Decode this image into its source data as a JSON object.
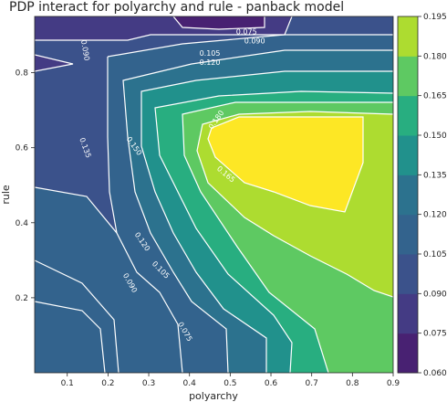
{
  "chart_data": {
    "type": "contour",
    "title": "PDP interact for polyarchy and rule - panback model",
    "xlabel": "polyarchy",
    "ylabel": "rule",
    "xlim": [
      0.02,
      0.9
    ],
    "ylim": [
      0.0,
      0.95
    ],
    "x_ticks": [
      "0.1",
      "0.2",
      "0.3",
      "0.4",
      "0.5",
      "0.6",
      "0.7",
      "0.8",
      "0.9"
    ],
    "y_ticks": [
      "0.2",
      "0.4",
      "0.6",
      "0.8"
    ],
    "colorbar": {
      "levels": [
        0.06,
        0.075,
        0.09,
        0.105,
        0.12,
        0.135,
        0.15,
        0.165,
        0.18,
        0.195
      ],
      "tick_labels": [
        "0.060",
        "0.075",
        "0.090",
        "0.105",
        "0.120",
        "0.135",
        "0.150",
        "0.165",
        "0.180",
        "0.195"
      ],
      "colors": [
        "#482172",
        "#443b84",
        "#3b528b",
        "#33638d",
        "#2c728e",
        "#21918c",
        "#28ae80",
        "#5ec962",
        "#addc30",
        "#fde725"
      ]
    },
    "contour_labels": [
      {
        "text": "0.075",
        "x": 0.54,
        "y": 0.91
      },
      {
        "text": "0.090",
        "x": 0.56,
        "y": 0.885
      },
      {
        "text": "0.090",
        "x": 0.145,
        "y": 0.86
      },
      {
        "text": "0.105",
        "x": 0.45,
        "y": 0.852
      },
      {
        "text": "0.120",
        "x": 0.45,
        "y": 0.828
      },
      {
        "text": "0.180",
        "x": 0.465,
        "y": 0.675
      },
      {
        "text": "0.135",
        "x": 0.145,
        "y": 0.6
      },
      {
        "text": "0.150",
        "x": 0.265,
        "y": 0.605
      },
      {
        "text": "0.165",
        "x": 0.49,
        "y": 0.53
      },
      {
        "text": "0.120",
        "x": 0.285,
        "y": 0.35
      },
      {
        "text": "0.105",
        "x": 0.33,
        "y": 0.275
      },
      {
        "text": "0.090",
        "x": 0.255,
        "y": 0.24
      },
      {
        "text": "0.075",
        "x": 0.39,
        "y": 0.11
      }
    ]
  }
}
